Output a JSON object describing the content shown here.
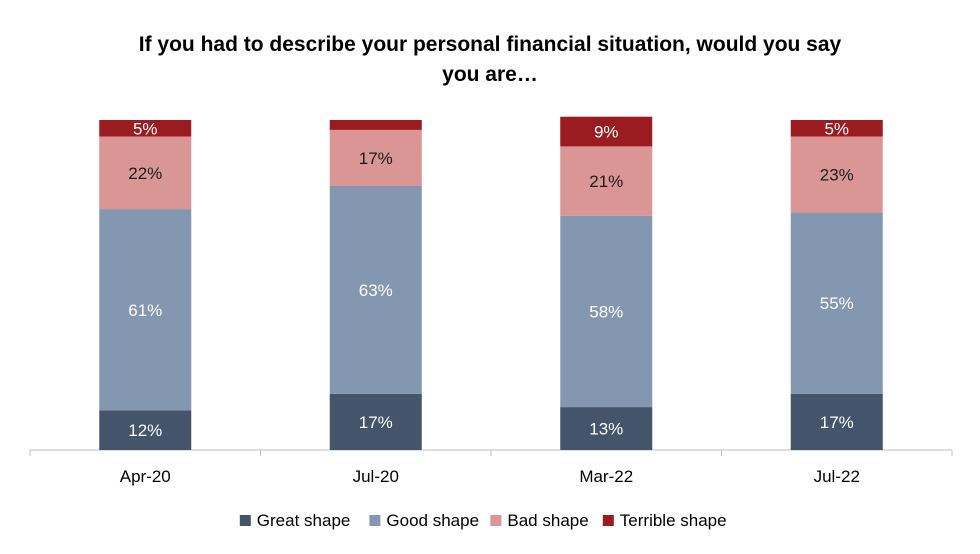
{
  "chart_data": {
    "type": "bar",
    "stacked": true,
    "title": "If you had to describe your personal financial situation, would you say\nyou are…",
    "categories": [
      "Apr-20",
      "Jul-20",
      "Mar-22",
      "Jul-22"
    ],
    "series": [
      {
        "name": "Great shape",
        "color": "#44546A",
        "label_color": "#ffffff",
        "values": [
          12,
          17,
          13,
          17
        ],
        "labels": [
          "12%",
          "17%",
          "13%",
          "17%"
        ]
      },
      {
        "name": "Good shape",
        "color": "#8497B0",
        "label_color": "#ffffff",
        "values": [
          61,
          63,
          58,
          55
        ],
        "labels": [
          "61%",
          "63%",
          "58%",
          "55%"
        ]
      },
      {
        "name": "Bad shape",
        "color": "#DA9694",
        "label_color": "#1a1a1a",
        "values": [
          22,
          17,
          21,
          23
        ],
        "labels": [
          "22%",
          "17%",
          "21%",
          "23%"
        ]
      },
      {
        "name": "Terrible shape",
        "color": "#9B1C20",
        "label_color": "#ffffff",
        "values": [
          5,
          3,
          9,
          5
        ],
        "labels": [
          "5%",
          "",
          "9%",
          "5%"
        ]
      }
    ],
    "ylim": [
      0,
      100
    ],
    "grid": false,
    "legend": "bottom"
  }
}
